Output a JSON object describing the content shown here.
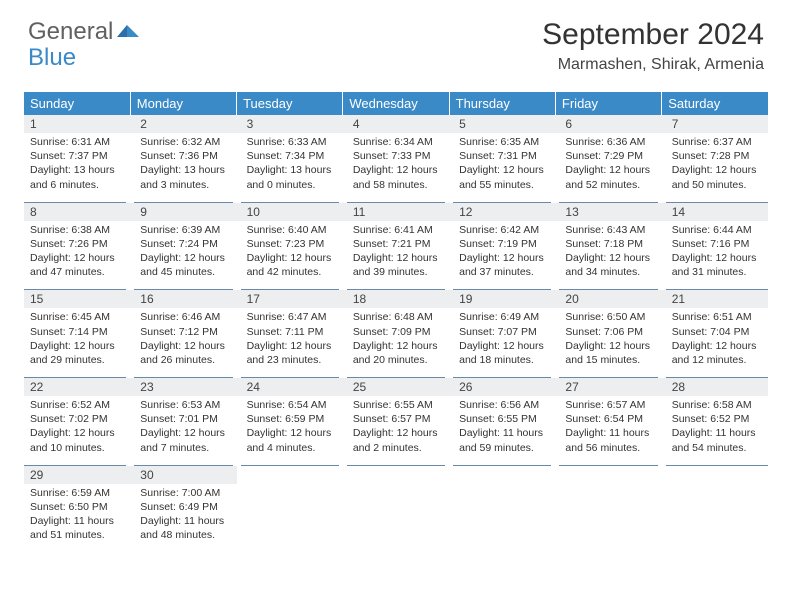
{
  "brand": {
    "part1": "General",
    "part2": "Blue"
  },
  "title": "September 2024",
  "location": "Marmashen, Shirak, Armenia",
  "colors": {
    "header_bg": "#3a8ac8",
    "daynum_bg": "#eceef0",
    "rule": "#6a88a8",
    "text": "#333333",
    "bg": "#ffffff"
  },
  "day_headers": [
    "Sunday",
    "Monday",
    "Tuesday",
    "Wednesday",
    "Thursday",
    "Friday",
    "Saturday"
  ],
  "weeks": [
    [
      {
        "n": "1",
        "sr": "6:31 AM",
        "ss": "7:37 PM",
        "dl": "13 hours and 6 minutes."
      },
      {
        "n": "2",
        "sr": "6:32 AM",
        "ss": "7:36 PM",
        "dl": "13 hours and 3 minutes."
      },
      {
        "n": "3",
        "sr": "6:33 AM",
        "ss": "7:34 PM",
        "dl": "13 hours and 0 minutes."
      },
      {
        "n": "4",
        "sr": "6:34 AM",
        "ss": "7:33 PM",
        "dl": "12 hours and 58 minutes."
      },
      {
        "n": "5",
        "sr": "6:35 AM",
        "ss": "7:31 PM",
        "dl": "12 hours and 55 minutes."
      },
      {
        "n": "6",
        "sr": "6:36 AM",
        "ss": "7:29 PM",
        "dl": "12 hours and 52 minutes."
      },
      {
        "n": "7",
        "sr": "6:37 AM",
        "ss": "7:28 PM",
        "dl": "12 hours and 50 minutes."
      }
    ],
    [
      {
        "n": "8",
        "sr": "6:38 AM",
        "ss": "7:26 PM",
        "dl": "12 hours and 47 minutes."
      },
      {
        "n": "9",
        "sr": "6:39 AM",
        "ss": "7:24 PM",
        "dl": "12 hours and 45 minutes."
      },
      {
        "n": "10",
        "sr": "6:40 AM",
        "ss": "7:23 PM",
        "dl": "12 hours and 42 minutes."
      },
      {
        "n": "11",
        "sr": "6:41 AM",
        "ss": "7:21 PM",
        "dl": "12 hours and 39 minutes."
      },
      {
        "n": "12",
        "sr": "6:42 AM",
        "ss": "7:19 PM",
        "dl": "12 hours and 37 minutes."
      },
      {
        "n": "13",
        "sr": "6:43 AM",
        "ss": "7:18 PM",
        "dl": "12 hours and 34 minutes."
      },
      {
        "n": "14",
        "sr": "6:44 AM",
        "ss": "7:16 PM",
        "dl": "12 hours and 31 minutes."
      }
    ],
    [
      {
        "n": "15",
        "sr": "6:45 AM",
        "ss": "7:14 PM",
        "dl": "12 hours and 29 minutes."
      },
      {
        "n": "16",
        "sr": "6:46 AM",
        "ss": "7:12 PM",
        "dl": "12 hours and 26 minutes."
      },
      {
        "n": "17",
        "sr": "6:47 AM",
        "ss": "7:11 PM",
        "dl": "12 hours and 23 minutes."
      },
      {
        "n": "18",
        "sr": "6:48 AM",
        "ss": "7:09 PM",
        "dl": "12 hours and 20 minutes."
      },
      {
        "n": "19",
        "sr": "6:49 AM",
        "ss": "7:07 PM",
        "dl": "12 hours and 18 minutes."
      },
      {
        "n": "20",
        "sr": "6:50 AM",
        "ss": "7:06 PM",
        "dl": "12 hours and 15 minutes."
      },
      {
        "n": "21",
        "sr": "6:51 AM",
        "ss": "7:04 PM",
        "dl": "12 hours and 12 minutes."
      }
    ],
    [
      {
        "n": "22",
        "sr": "6:52 AM",
        "ss": "7:02 PM",
        "dl": "12 hours and 10 minutes."
      },
      {
        "n": "23",
        "sr": "6:53 AM",
        "ss": "7:01 PM",
        "dl": "12 hours and 7 minutes."
      },
      {
        "n": "24",
        "sr": "6:54 AM",
        "ss": "6:59 PM",
        "dl": "12 hours and 4 minutes."
      },
      {
        "n": "25",
        "sr": "6:55 AM",
        "ss": "6:57 PM",
        "dl": "12 hours and 2 minutes."
      },
      {
        "n": "26",
        "sr": "6:56 AM",
        "ss": "6:55 PM",
        "dl": "11 hours and 59 minutes."
      },
      {
        "n": "27",
        "sr": "6:57 AM",
        "ss": "6:54 PM",
        "dl": "11 hours and 56 minutes."
      },
      {
        "n": "28",
        "sr": "6:58 AM",
        "ss": "6:52 PM",
        "dl": "11 hours and 54 minutes."
      }
    ],
    [
      {
        "n": "29",
        "sr": "6:59 AM",
        "ss": "6:50 PM",
        "dl": "11 hours and 51 minutes."
      },
      {
        "n": "30",
        "sr": "7:00 AM",
        "ss": "6:49 PM",
        "dl": "11 hours and 48 minutes."
      },
      null,
      null,
      null,
      null,
      null
    ]
  ],
  "labels": {
    "sunrise_prefix": "Sunrise: ",
    "sunset_prefix": "Sunset: ",
    "daylight_prefix": "Daylight: "
  }
}
